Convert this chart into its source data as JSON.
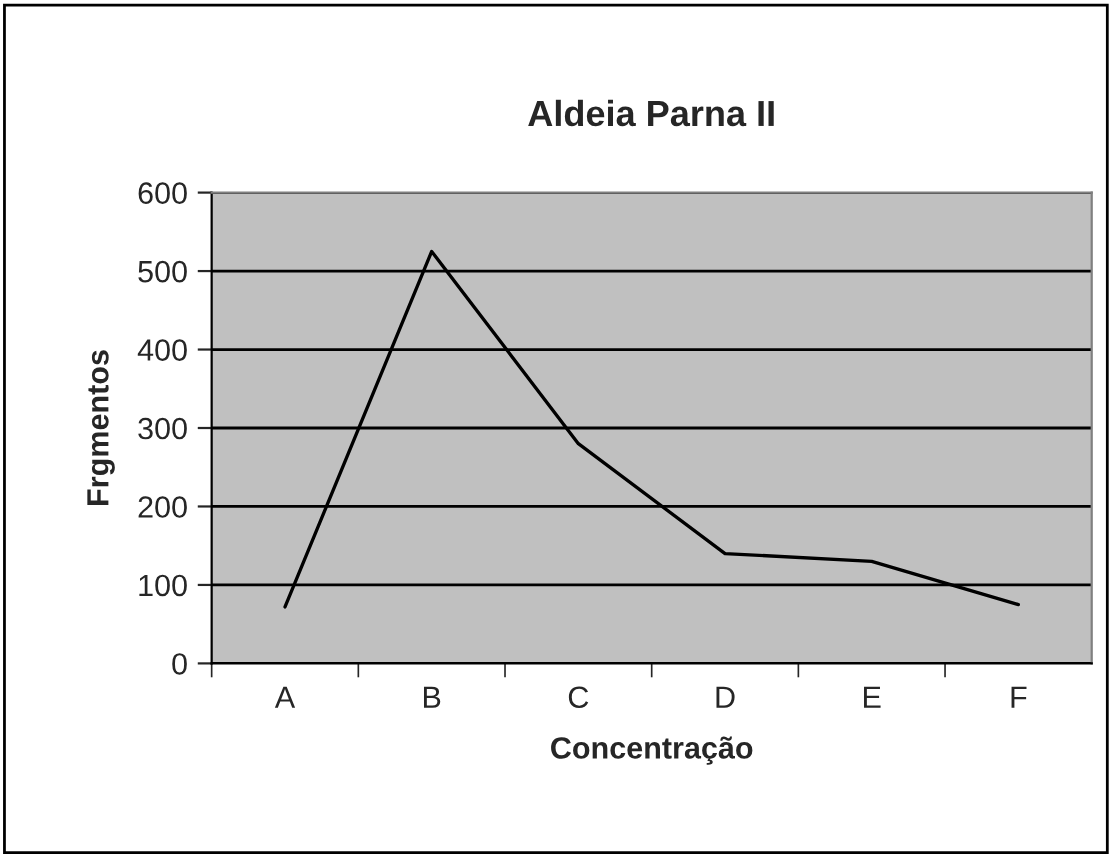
{
  "chart_data": {
    "type": "line",
    "title": "Aldeia Parna II",
    "xlabel": "Concentração",
    "ylabel": "Frgmentos",
    "categories": [
      "A",
      "B",
      "C",
      "D",
      "E",
      "F"
    ],
    "series": [
      {
        "color": "#000000",
        "values": [
          72,
          525,
          280,
          140,
          130,
          75
        ]
      }
    ],
    "ylim": [
      0,
      600
    ],
    "yticks": [
      0,
      100,
      200,
      300,
      400,
      500,
      600
    ],
    "grid": "y",
    "legend": false,
    "marker": "none",
    "line_style": "solid"
  }
}
